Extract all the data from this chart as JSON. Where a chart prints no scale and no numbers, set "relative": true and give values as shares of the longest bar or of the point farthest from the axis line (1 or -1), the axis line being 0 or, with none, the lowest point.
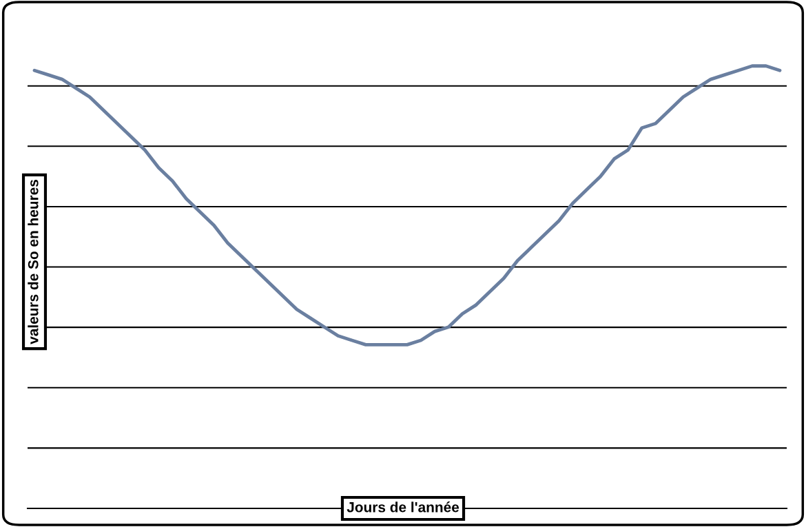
{
  "chart_data": {
    "type": "line",
    "relative": true,
    "xlabel": "Jours de l'année",
    "ylabel": "valeurs de So en heures",
    "grid": "y",
    "categories": [
      null,
      null,
      null,
      null,
      null,
      null,
      null,
      null,
      null,
      null,
      null,
      null,
      null,
      null,
      null,
      null,
      null,
      null,
      null,
      null,
      null,
      null,
      null,
      null,
      null,
      null,
      null,
      null,
      null,
      null,
      null,
      null,
      null,
      null,
      null,
      null,
      null,
      null,
      null,
      null,
      null,
      null,
      null,
      null,
      null,
      null,
      null,
      null,
      null,
      null,
      null,
      null,
      null,
      null,
      null
    ],
    "series": [
      {
        "color": "#6a7fa0",
        "values": [
          0.99,
          0.98,
          0.97,
          0.95,
          0.93,
          0.9,
          0.87,
          0.84,
          0.81,
          0.77,
          0.74,
          0.7,
          0.67,
          0.64,
          0.6,
          0.57,
          0.54,
          0.51,
          0.48,
          0.45,
          0.43,
          0.41,
          0.39,
          0.38,
          0.37,
          0.37,
          0.37,
          0.37,
          0.38,
          0.4,
          0.41,
          0.44,
          0.46,
          0.49,
          0.52,
          0.56,
          0.59,
          0.62,
          0.65,
          0.69,
          0.72,
          0.75,
          0.79,
          0.81,
          0.86,
          0.87,
          0.9,
          0.93,
          0.95,
          0.97,
          0.98,
          0.99,
          1.0,
          1.0,
          0.99
        ]
      }
    ]
  }
}
